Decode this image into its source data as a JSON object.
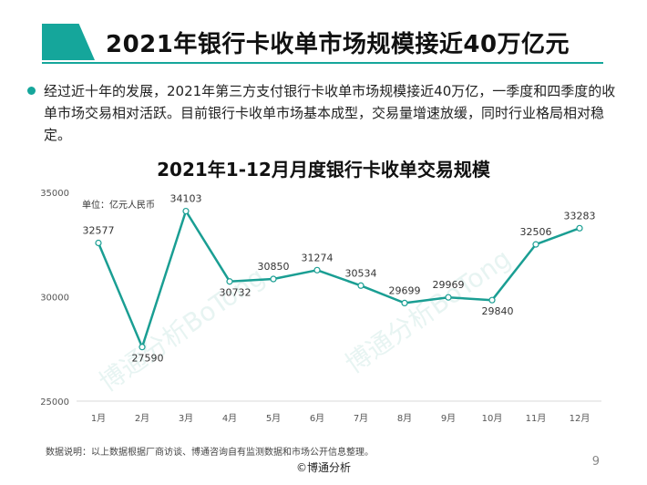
{
  "header": {
    "title": "2021年银行卡收单市场规模接近40万亿元"
  },
  "summary": {
    "text": "经过近十年的发展，2021年第三方支付银行卡收单市场规模接近40万亿，一季度和四季度的收单市场交易相对活跃。目前银行卡收单市场基本成型，交易量增速放缓，同时行业格局相对稳定。"
  },
  "chart_data": {
    "type": "line",
    "title": "2021年1-12月月度银行卡收单交易规模",
    "unit_label": "单位：亿元人民币",
    "categories": [
      "1月",
      "2月",
      "3月",
      "4月",
      "5月",
      "6月",
      "7月",
      "8月",
      "9月",
      "10月",
      "11月",
      "12月"
    ],
    "series": [
      {
        "values": [
          32577,
          27590,
          34103,
          30732,
          30850,
          31274,
          30534,
          29699,
          29969,
          29840,
          32506,
          33283
        ]
      }
    ],
    "ylim": [
      25000,
      35000
    ],
    "yticks": [
      25000,
      30000,
      35000
    ],
    "grid": false,
    "line_color": "#1a9e93"
  },
  "footer": {
    "note": "数据说明：以上数据根据厂商访谈、博通咨询自有监测数据和市场公开信息整理。",
    "copyright": "©博通分析",
    "page_number": "9"
  },
  "watermarks": [
    "博通分析BoTong",
    "博通分析BoTong"
  ]
}
